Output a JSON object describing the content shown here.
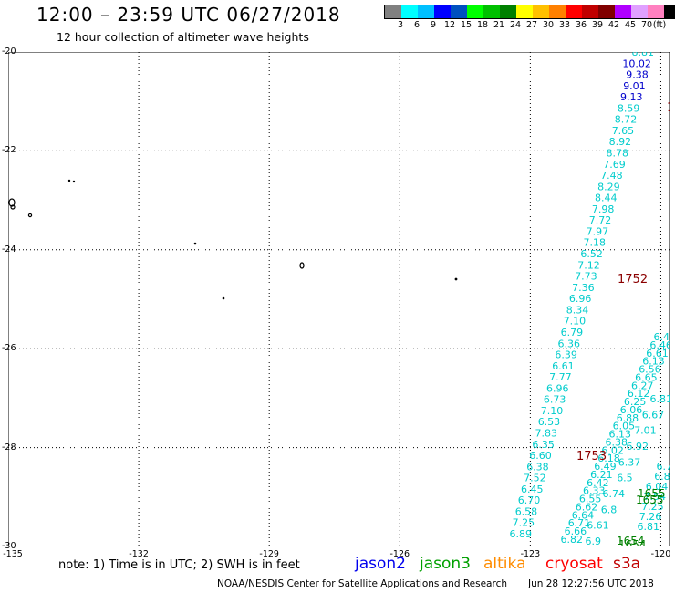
{
  "header": {
    "title": "12:00 – 23:59 UTC 06/27/2018",
    "subtitle": "12 hour collection of altimeter wave heights"
  },
  "legend": {
    "unit": "(ft)",
    "colors": [
      "#808080",
      "#00ffff",
      "#00c0ff",
      "#0000ff",
      "#0050c0",
      "#00ff00",
      "#00c000",
      "#008000",
      "#ffff00",
      "#ffc000",
      "#ff8000",
      "#ff0000",
      "#c00000",
      "#800000",
      "#b000ff",
      "#e0a0ff",
      "#ff80c0",
      "#000000"
    ],
    "labels": [
      "3",
      "6",
      "9",
      "12",
      "15",
      "18",
      "21",
      "24",
      "27",
      "30",
      "33",
      "36",
      "39",
      "42",
      "45",
      "70"
    ]
  },
  "axes": {
    "lat_labels": [
      "-20",
      "-22",
      "-24",
      "-26",
      "-28",
      "-30"
    ],
    "lat_values": [
      -20,
      -22,
      -24,
      -26,
      -28,
      -30
    ],
    "lon_labels": [
      "-135",
      "-132",
      "-129",
      "-126",
      "-123",
      "-120"
    ],
    "lon_values": [
      -135,
      -132,
      -129,
      -126,
      -123,
      -120
    ],
    "lon_range": [
      -135,
      -119.8
    ],
    "lat_range": [
      -20,
      -30
    ]
  },
  "track_a": {
    "values": [
      "8.81",
      "10.02",
      "9.38",
      "9.01",
      "9.13",
      "8.59",
      "8.72",
      "7.65",
      "8.92",
      "8.78",
      "7.69",
      "7.48",
      "8.29",
      "8.44",
      "7.98",
      "7.72",
      "7.97",
      "7.18",
      "6.52",
      "7.12",
      "7.73",
      "7.36",
      "6.96",
      "8.34",
      "7.10",
      "6.79",
      "6.36",
      "6.39",
      "6.61",
      "7.77",
      "6.96",
      "6.73",
      "7.10",
      "6.53",
      "7.83",
      "6.35",
      "6.60",
      "6.38",
      "7.52",
      "6.45",
      "6.70",
      "6.58",
      "7.25",
      "6.89"
    ],
    "colors": [
      "#00cccc",
      "#0000cc",
      "#0000cc",
      "#0000cc",
      "#0000cc",
      "#00cccc",
      "#00cccc",
      "#00cccc",
      "#00cccc",
      "#00cccc",
      "#00cccc",
      "#00cccc",
      "#00cccc",
      "#00cccc",
      "#00cccc",
      "#00cccc",
      "#00cccc",
      "#00cccc",
      "#00cccc",
      "#00cccc",
      "#00cccc",
      "#00cccc",
      "#00cccc",
      "#00cccc",
      "#00cccc",
      "#00cccc",
      "#00cccc",
      "#00cccc",
      "#00cccc",
      "#00cccc",
      "#00cccc",
      "#00cccc",
      "#00cccc",
      "#00cccc",
      "#00cccc",
      "#00cccc",
      "#00cccc",
      "#00cccc",
      "#00cccc",
      "#00cccc",
      "#00cccc",
      "#00cccc",
      "#00cccc",
      "#00cccc"
    ]
  },
  "track_b": {
    "values": [
      "6.82",
      "6.66",
      "6.71",
      "6.64",
      "6.62",
      "6.55",
      "6.33",
      "6.42",
      "6.21",
      "6.49",
      "6.18",
      "6.02",
      "6.38",
      "6.13",
      "6.05",
      "6.88",
      "6.06",
      "6.25",
      "6.12",
      "6.27",
      "6.65",
      "6.56",
      "6.13",
      "6.61",
      "6.46",
      "6.41"
    ]
  },
  "track_c": {
    "values": [
      "6.9",
      "6.61",
      "6.8",
      "6.74",
      "6.5",
      "6.37",
      "6.92",
      "7.01",
      "6.67",
      "6.81"
    ]
  },
  "track_d": {
    "values": [
      "6.7",
      "6.8",
      "6.04",
      "7.54",
      "7.25",
      "7.26",
      "6.81"
    ]
  },
  "time_labels": {
    "red": [
      "1752",
      "1752",
      "1753",
      "1"
    ],
    "green": [
      "1655",
      "1655",
      "1654",
      "1654",
      "1"
    ]
  },
  "footer": {
    "note": "note:  1) Time is in UTC;  2) SWH is in feet",
    "missions": [
      {
        "name": "jason2",
        "color": "#0000ee"
      },
      {
        "name": "jason3",
        "color": "#00a000"
      },
      {
        "name": "altika",
        "color": "#ff8c00"
      },
      {
        "name": "cryosat",
        "color": "#ff0000"
      },
      {
        "name": "s3a",
        "color": "#c00000"
      }
    ],
    "credit": "NOAA/NESDIS Center for Satellite Applications and Research",
    "timestamp": "Jun 28 12:27:56 UTC 2018"
  }
}
